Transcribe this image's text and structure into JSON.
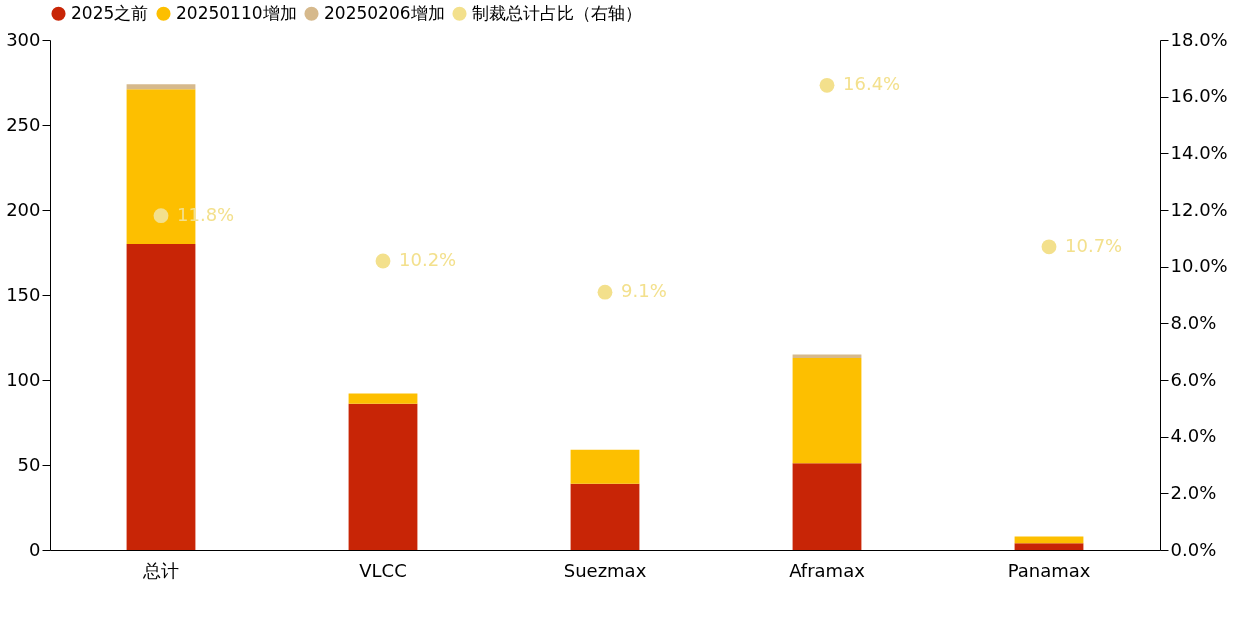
{
  "chart_data": {
    "type": "bar",
    "stacked": true,
    "legend": "top",
    "grid": false,
    "categories": [
      "总计",
      "VLCC",
      "Suezmax",
      "Aframax",
      "Panamax"
    ],
    "ylim": [
      0,
      300
    ],
    "yticks": [
      0,
      50,
      100,
      150,
      200,
      250,
      300
    ],
    "y2lim": [
      0,
      18
    ],
    "y2ticks": [
      {
        "value": 0,
        "label": "0.0%"
      },
      {
        "value": 2,
        "label": "2.0%"
      },
      {
        "value": 4,
        "label": "4.0%"
      },
      {
        "value": 6,
        "label": "6.0%"
      },
      {
        "value": 8,
        "label": "8.0%"
      },
      {
        "value": 10,
        "label": "10.0%"
      },
      {
        "value": 12,
        "label": "12.0%"
      },
      {
        "value": 14,
        "label": "14.0%"
      },
      {
        "value": 16,
        "label": "16.0%"
      },
      {
        "value": 18,
        "label": "18.0%"
      }
    ],
    "series": [
      {
        "name": "2025之前",
        "color": "#c82506",
        "values": [
          180,
          86,
          39,
          51,
          4
        ]
      },
      {
        "name": "20250110增加",
        "color": "#fdbf00",
        "values": [
          91,
          6,
          20,
          62,
          4
        ]
      },
      {
        "name": "20250206增加",
        "color": "#d6b98c",
        "values": [
          3,
          0,
          0,
          2,
          0
        ]
      },
      {
        "name": "制裁总计占比（右轴）",
        "color": "#f3e08c",
        "type": "scatter",
        "marker": "circle",
        "axis": "y2",
        "values": [
          11.8,
          10.2,
          9.1,
          16.4,
          10.7
        ],
        "value_labels": [
          "11.8%",
          "10.2%",
          "9.1%",
          "16.4%",
          "10.7%"
        ]
      }
    ]
  }
}
